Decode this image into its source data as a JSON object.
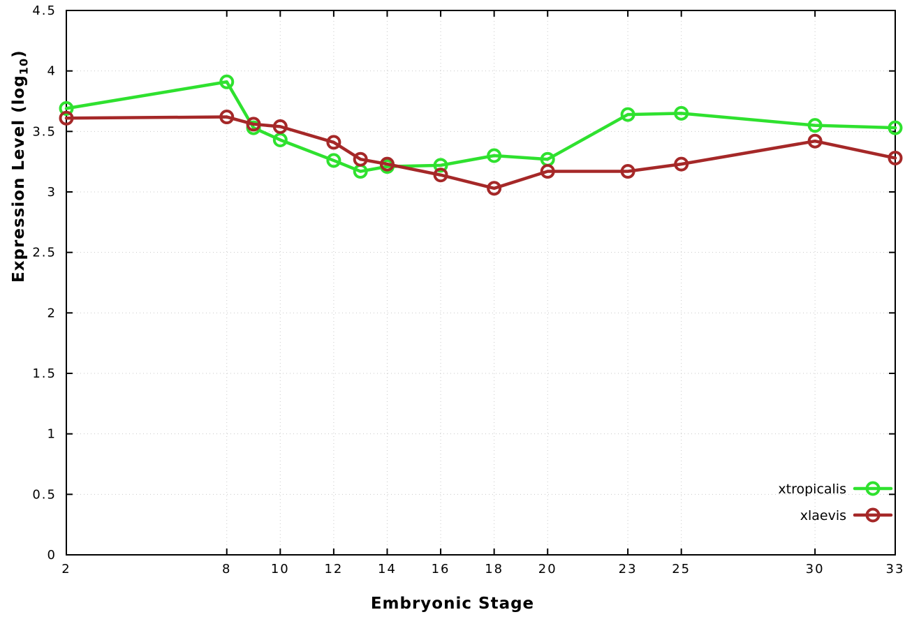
{
  "chart_data": {
    "type": "line",
    "title": "",
    "xlabel": "Embryonic Stage",
    "ylabel": "Expression Level (log10)",
    "ylabel_main": "Expression Level (log",
    "ylabel_sub": "10",
    "ylabel_end": ")",
    "xlim": [
      2,
      33
    ],
    "ylim": [
      0,
      4.5
    ],
    "x_ticks": [
      2,
      8,
      10,
      12,
      14,
      16,
      18,
      20,
      23,
      25,
      30,
      33
    ],
    "y_ticks": [
      0,
      0.5,
      1,
      1.5,
      2,
      2.5,
      3,
      3.5,
      4,
      4.5
    ],
    "grid": true,
    "legend_position": "bottom-right",
    "x": [
      2,
      8,
      9,
      10,
      12,
      13,
      14,
      16,
      18,
      20,
      23,
      25,
      30,
      33
    ],
    "series": [
      {
        "name": "xtropicalis",
        "color": "#2fe12f",
        "marker": "open-circle",
        "values": [
          3.69,
          3.91,
          3.53,
          3.43,
          3.26,
          3.17,
          3.21,
          3.22,
          3.3,
          3.27,
          3.64,
          3.65,
          3.55,
          3.53
        ]
      },
      {
        "name": "xlaevis",
        "color": "#a52828",
        "marker": "open-circle",
        "values": [
          3.61,
          3.62,
          3.56,
          3.54,
          3.41,
          3.27,
          3.23,
          3.14,
          3.03,
          3.17,
          3.17,
          3.23,
          3.42,
          3.28
        ]
      }
    ]
  }
}
